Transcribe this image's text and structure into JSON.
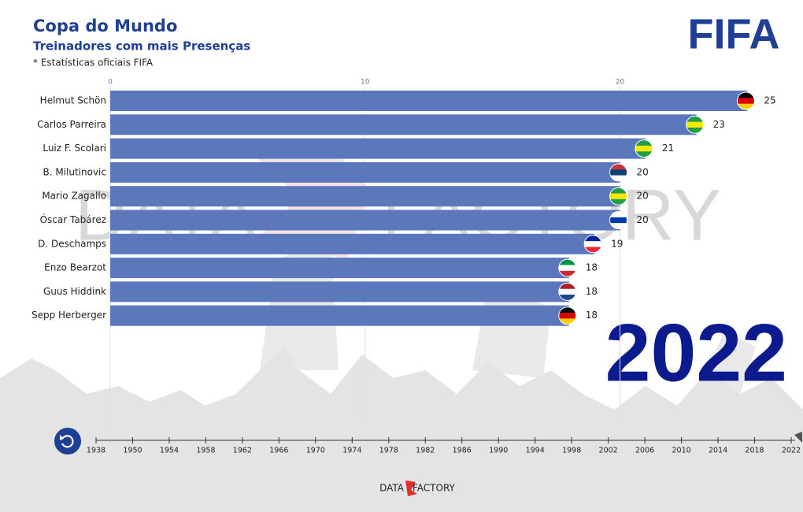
{
  "chart_data": {
    "type": "barh",
    "title": "Copa do Mundo",
    "subtitle": "Treinadores com mais Presenças",
    "note": "* Estatísticas oficiais FIFA",
    "logo": "FIFA",
    "year": "2022",
    "categories": [
      "Helmut Schön",
      "Carlos Parreira",
      "Luiz F. Scolari",
      "B. Milutinovic",
      "Mario Zagallo",
      "Óscar Tabárez",
      "D. Deschamps",
      "Enzo Bearzot",
      "Guus Hiddink",
      "Sepp Herberger"
    ],
    "values": [
      25,
      23,
      21,
      20,
      20,
      20,
      19,
      18,
      18,
      18
    ],
    "color": "#5b78bd",
    "flag_colors": [
      [
        "#000000",
        "#dd0000",
        "#ffce00"
      ],
      [
        "#229e45",
        "#f8e509",
        "#229e45"
      ],
      [
        "#229e45",
        "#f8e509",
        "#229e45"
      ],
      [
        "#c6363c",
        "#0c4076",
        "#ffffff"
      ],
      [
        "#229e45",
        "#f8e509",
        "#229e45"
      ],
      [
        "#ffffff",
        "#0038a8",
        "#ffffff"
      ],
      [
        "#002395",
        "#ffffff",
        "#ed2939"
      ],
      [
        "#009246",
        "#ffffff",
        "#ce2b37"
      ],
      [
        "#ae1c28",
        "#ffffff",
        "#21468b"
      ],
      [
        "#000000",
        "#dd0000",
        "#ffce00"
      ]
    ],
    "xlim": [
      0,
      26.5
    ],
    "xticks": [
      0,
      10,
      20
    ],
    "grid": true,
    "timeline": [
      "1938",
      "1950",
      "1954",
      "1958",
      "1962",
      "1966",
      "1970",
      "1974",
      "1978",
      "1982",
      "1986",
      "1990",
      "1994",
      "1998",
      "2002",
      "2006",
      "2010",
      "2014",
      "2018",
      "2022"
    ],
    "watermark": [
      "DATA",
      "FACTORY"
    ],
    "footer": [
      "DATA",
      "FACTORY"
    ]
  }
}
